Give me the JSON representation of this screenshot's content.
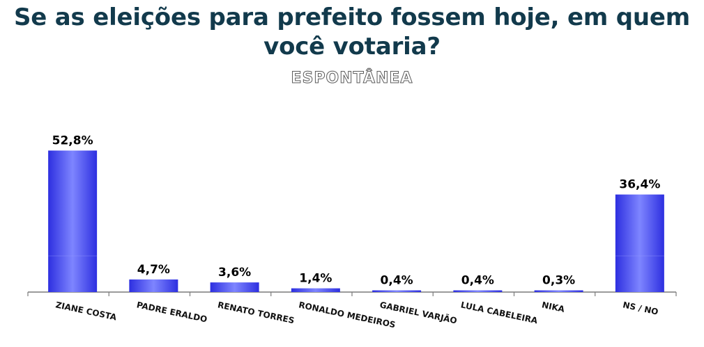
{
  "title": "Se as eleições para prefeito fossem hoje,  em quem você votaria?",
  "subtitle": "ESPONTÂNEA",
  "colors": {
    "bar_dark": "#2d2fe0",
    "bar_light": "#7e85ff",
    "axis": "#7a7a7a",
    "title": "#123a4c"
  },
  "chart_data": {
    "type": "bar",
    "categories": [
      "ZIANE COSTA",
      "PADRE ERALDO",
      "RENATO TORRES",
      "RONALDO MEDEIROS",
      "GABRIEL VARJÃO",
      "LULA CABELEIRA",
      "NIKA",
      "NS / NO"
    ],
    "values": [
      52.8,
      4.7,
      3.6,
      1.4,
      0.4,
      0.4,
      0.3,
      36.4
    ],
    "value_labels": [
      "52,8%",
      "4,7%",
      "3,6%",
      "1,4%",
      "0,4%",
      "0,4%",
      "0,3%",
      "36,4%"
    ],
    "ylim": [
      0,
      55
    ],
    "grid": false,
    "legend": "none"
  }
}
